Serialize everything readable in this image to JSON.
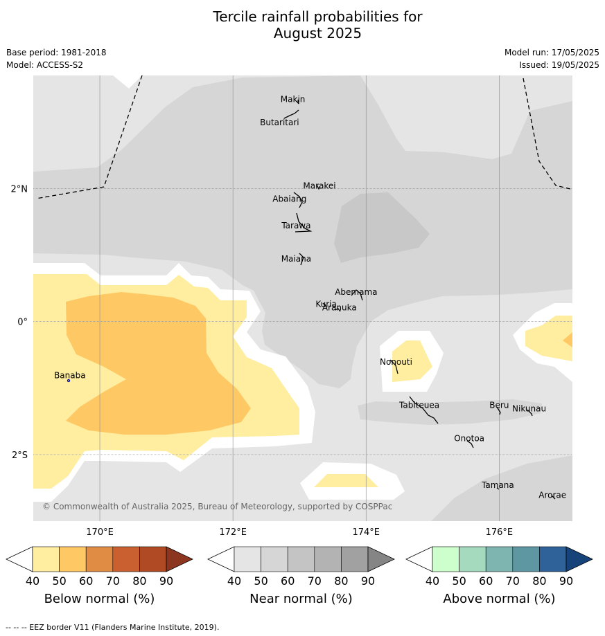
{
  "title": {
    "line1": "Tercile rainfall probabilities for",
    "line2": "August 2025"
  },
  "meta": {
    "base_period": "Base period: 1981-2018",
    "model": "Model: ACCESS-S2",
    "model_run": "Model run: 17/05/2025",
    "issued": "Issued: 19/05/2025"
  },
  "map": {
    "lon_range": [
      169.0,
      177.1
    ],
    "lat_range": [
      -3.0,
      3.7
    ],
    "lon_ticks": [
      {
        "lon": 170,
        "label": "170°E"
      },
      {
        "lon": 172,
        "label": "172°E"
      },
      {
        "lon": 174,
        "label": "174°E"
      },
      {
        "lon": 176,
        "label": "176°E"
      }
    ],
    "lat_ticks": [
      {
        "lat": 2,
        "label": "2°N"
      },
      {
        "lat": 0,
        "label": "0°"
      },
      {
        "lat": -2,
        "label": "2°S"
      }
    ],
    "places": [
      {
        "name": "Makin",
        "lon": 172.9,
        "lat": 3.3
      },
      {
        "name": "Butaritari",
        "lon": 172.7,
        "lat": 2.95
      },
      {
        "name": "Marakei",
        "lon": 173.3,
        "lat": 2.0
      },
      {
        "name": "Abaiang",
        "lon": 172.85,
        "lat": 1.8
      },
      {
        "name": "Tarawa",
        "lon": 172.95,
        "lat": 1.4
      },
      {
        "name": "Maiana",
        "lon": 172.95,
        "lat": 0.9
      },
      {
        "name": "Abemama",
        "lon": 173.85,
        "lat": 0.4
      },
      {
        "name": "Kuria",
        "lon": 173.4,
        "lat": 0.22
      },
      {
        "name": "Aranuka",
        "lon": 173.6,
        "lat": 0.17
      },
      {
        "name": "Nonouti",
        "lon": 174.45,
        "lat": -0.65
      },
      {
        "name": "Banaba",
        "lon": 169.55,
        "lat": -0.85
      },
      {
        "name": "Tabiteuea",
        "lon": 174.8,
        "lat": -1.3
      },
      {
        "name": "Beru",
        "lon": 176.0,
        "lat": -1.3
      },
      {
        "name": "Nikunau",
        "lon": 176.45,
        "lat": -1.35
      },
      {
        "name": "Onotoa",
        "lon": 175.55,
        "lat": -1.8
      },
      {
        "name": "Tamana",
        "lon": 175.98,
        "lat": -2.5
      },
      {
        "name": "Arorae",
        "lon": 176.8,
        "lat": -2.65
      }
    ],
    "copyright": "© Commonwealth of Australia 2025, Bureau of Meteorology, supported by COSPPac"
  },
  "colorbars": [
    {
      "name": "below",
      "title": "Below normal (%)",
      "ticks": [
        "40",
        "50",
        "60",
        "70",
        "80",
        "90"
      ],
      "colors": [
        "#ffffff",
        "#ffeda0",
        "#fec965",
        "#e08c45",
        "#ca6030",
        "#b04a25",
        "#8c3620"
      ]
    },
    {
      "name": "near",
      "title": "Near normal (%)",
      "ticks": [
        "40",
        "50",
        "60",
        "70",
        "80",
        "90"
      ],
      "colors": [
        "#ffffff",
        "#e5e5e5",
        "#d6d6d6",
        "#c4c4c4",
        "#b3b3b3",
        "#a1a1a1",
        "#858585"
      ]
    },
    {
      "name": "above",
      "title": "Above normal (%)",
      "ticks": [
        "40",
        "50",
        "60",
        "70",
        "80",
        "90"
      ],
      "colors": [
        "#ffffff",
        "#ccffcc",
        "#a6dabf",
        "#7fb5b0",
        "#5e96a1",
        "#2f6298",
        "#16447a"
      ]
    }
  ],
  "footnote": "--  --  -- EEZ border V11 (Flanders Marine Institute, 2019)."
}
